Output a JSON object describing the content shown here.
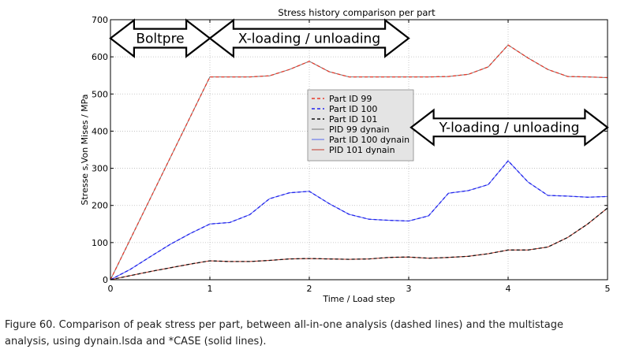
{
  "chart_data": {
    "type": "line",
    "title": "Stress history comparison per part",
    "xlabel": "Time / Load step",
    "ylabel": "Stresse s,Von Mises / MPa",
    "xlim": [
      0,
      5
    ],
    "ylim": [
      0,
      700
    ],
    "x_ticks": [
      "0",
      "1",
      "2",
      "3",
      "4",
      "5"
    ],
    "y_ticks": [
      "0",
      "100",
      "200",
      "300",
      "400",
      "500",
      "600",
      "700"
    ],
    "grid": true,
    "legend_position": "center",
    "series": [
      {
        "name": "Part ID 99",
        "color": "#e8392a",
        "style": "dashed",
        "x": [
          0,
          1,
          1.2,
          1.4,
          1.6,
          1.8,
          2.0,
          2.2,
          2.4,
          2.6,
          2.8,
          3.0,
          3.2,
          3.4,
          3.6,
          3.8,
          4.0,
          4.2,
          4.4,
          4.6,
          4.8,
          5.0
        ],
        "y": [
          0,
          546,
          546,
          546,
          549,
          566,
          588,
          560,
          546,
          546,
          546,
          546,
          546,
          547,
          553,
          573,
          632,
          597,
          566,
          547,
          546,
          544
        ]
      },
      {
        "name": "Part ID 100",
        "color": "#2222ee",
        "style": "dashed",
        "x": [
          0,
          0.2,
          0.4,
          0.6,
          0.8,
          1.0,
          1.2,
          1.4,
          1.6,
          1.8,
          2.0,
          2.2,
          2.4,
          2.6,
          2.8,
          3.0,
          3.2,
          3.4,
          3.6,
          3.8,
          4.0,
          4.2,
          4.4,
          4.6,
          4.8,
          5.0
        ],
        "y": [
          0,
          28,
          62,
          95,
          124,
          150,
          154,
          175,
          218,
          234,
          238,
          205,
          176,
          163,
          160,
          158,
          172,
          233,
          240,
          256,
          320,
          263,
          227,
          225,
          222,
          224
        ]
      },
      {
        "name": "Part ID 101",
        "color": "#111111",
        "style": "dashed",
        "x": [
          0,
          0.2,
          0.4,
          0.6,
          0.8,
          1.0,
          1.2,
          1.4,
          1.6,
          1.8,
          2.0,
          2.2,
          2.4,
          2.6,
          2.8,
          3.0,
          3.2,
          3.4,
          3.6,
          3.8,
          4.0,
          4.2,
          4.4,
          4.6,
          4.8,
          5.0
        ],
        "y": [
          0,
          11,
          22,
          32,
          42,
          51,
          49,
          49,
          52,
          56,
          57,
          56,
          55,
          56,
          60,
          61,
          58,
          60,
          63,
          70,
          80,
          80,
          88,
          114,
          150,
          193
        ]
      },
      {
        "name": "PID 99 dynain",
        "color": "#777777",
        "style": "solid",
        "x": [
          0,
          1,
          1.2,
          1.4,
          1.6,
          1.8,
          2.0,
          2.2,
          2.4,
          2.6,
          2.8,
          3.0,
          3.2,
          3.4,
          3.6,
          3.8,
          4.0,
          4.2,
          4.4,
          4.6,
          4.8,
          5.0
        ],
        "y": [
          0,
          546,
          546,
          546,
          549,
          566,
          588,
          560,
          546,
          546,
          546,
          546,
          546,
          547,
          553,
          573,
          632,
          597,
          566,
          547,
          546,
          544
        ]
      },
      {
        "name": "Part ID 100 dynain",
        "color": "#5566ee",
        "style": "solid",
        "x": [
          0,
          0.2,
          0.4,
          0.6,
          0.8,
          1.0,
          1.2,
          1.4,
          1.6,
          1.8,
          2.0,
          2.2,
          2.4,
          2.6,
          2.8,
          3.0,
          3.2,
          3.4,
          3.6,
          3.8,
          4.0,
          4.2,
          4.4,
          4.6,
          4.8,
          5.0
        ],
        "y": [
          0,
          28,
          62,
          95,
          124,
          150,
          154,
          175,
          218,
          234,
          238,
          205,
          176,
          163,
          160,
          158,
          172,
          233,
          240,
          256,
          320,
          263,
          227,
          225,
          222,
          224
        ]
      },
      {
        "name": "PID 101 dynain",
        "color": "#c0392b",
        "style": "solid",
        "x": [
          0,
          0.2,
          0.4,
          0.6,
          0.8,
          1.0,
          1.2,
          1.4,
          1.6,
          1.8,
          2.0,
          2.2,
          2.4,
          2.6,
          2.8,
          3.0,
          3.2,
          3.4,
          3.6,
          3.8,
          4.0,
          4.2,
          4.4,
          4.6,
          4.8,
          5.0
        ],
        "y": [
          0,
          11,
          22,
          32,
          42,
          51,
          49,
          49,
          52,
          56,
          57,
          56,
          55,
          56,
          60,
          61,
          58,
          60,
          63,
          70,
          80,
          80,
          88,
          114,
          150,
          193
        ]
      }
    ],
    "annotations": [
      {
        "text": "Boltpre",
        "x_range": [
          0,
          1
        ],
        "y": 650
      },
      {
        "text": "X-loading / unloading",
        "x_range": [
          1,
          3
        ],
        "y": 650
      },
      {
        "text": "Y-loading / unloading",
        "x_range": [
          3,
          5
        ],
        "y": 410
      }
    ]
  },
  "caption": {
    "line1": "Figure 60. Comparison of peak stress per part, between all-in-one analysis (dashed lines) and the multistage",
    "line2": "analysis, using dynain.lsda and *CASE (solid lines)."
  }
}
